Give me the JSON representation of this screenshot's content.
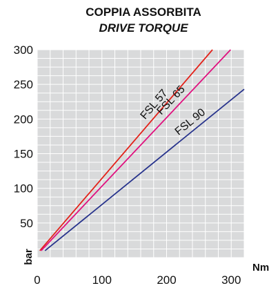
{
  "chart_data": {
    "type": "line",
    "title": "COPPIA ASSORBITA",
    "subtitle": "DRIVE TORQUE",
    "xlabel": "Nm",
    "ylabel": "bar",
    "xlim": [
      0,
      320
    ],
    "ylim": [
      0,
      300
    ],
    "x_ticks": [
      "0",
      "100",
      "200",
      "300"
    ],
    "y_ticks": [
      "50",
      "100",
      "150",
      "200",
      "250",
      "300"
    ],
    "grid": true,
    "series": [
      {
        "name": "FSL 57",
        "color": "#e32119",
        "points": [
          [
            4,
            10
          ],
          [
            271,
            300
          ]
        ]
      },
      {
        "name": "FSL 65",
        "color": "#e0107e",
        "points": [
          [
            6,
            10
          ],
          [
            299,
            300
          ]
        ]
      },
      {
        "name": "FSL 90",
        "color": "#27338c",
        "points": [
          [
            12,
            10
          ],
          [
            320,
            243
          ]
        ]
      }
    ]
  }
}
